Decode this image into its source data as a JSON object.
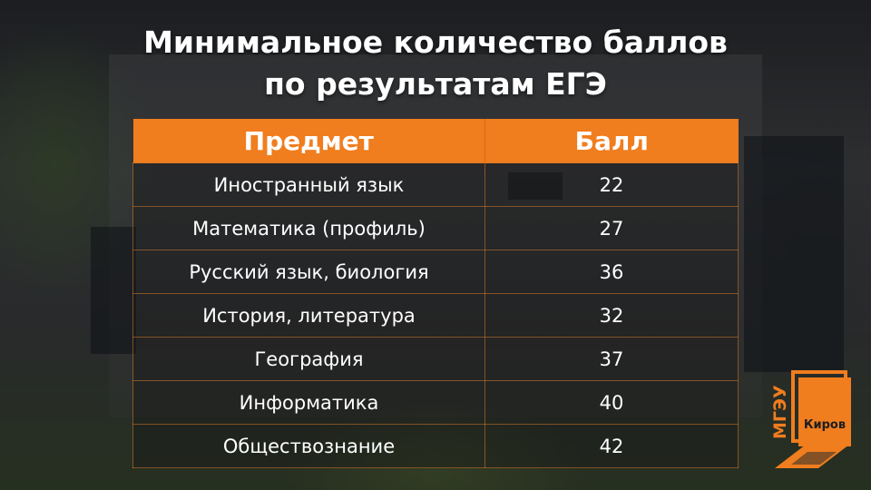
{
  "title": {
    "line1": "Минимальное количество баллов",
    "line2": "по результатам ЕГЭ"
  },
  "table": {
    "headers": [
      "Предмет",
      "Балл"
    ],
    "rows": [
      {
        "subject": "Иностранный язык",
        "score": "22"
      },
      {
        "subject": "Математика (профиль)",
        "score": "27"
      },
      {
        "subject": "Русский язык, биология",
        "score": "36"
      },
      {
        "subject": "История, литература",
        "score": "32"
      },
      {
        "subject": "География",
        "score": "37"
      },
      {
        "subject": "Информатика",
        "score": "40"
      },
      {
        "subject": "Обществознание",
        "score": "42"
      }
    ]
  },
  "logo": {
    "name": "МГЭУ",
    "city": "Киров"
  },
  "colors": {
    "accent": "#f07d1e",
    "text": "#ffffff"
  }
}
